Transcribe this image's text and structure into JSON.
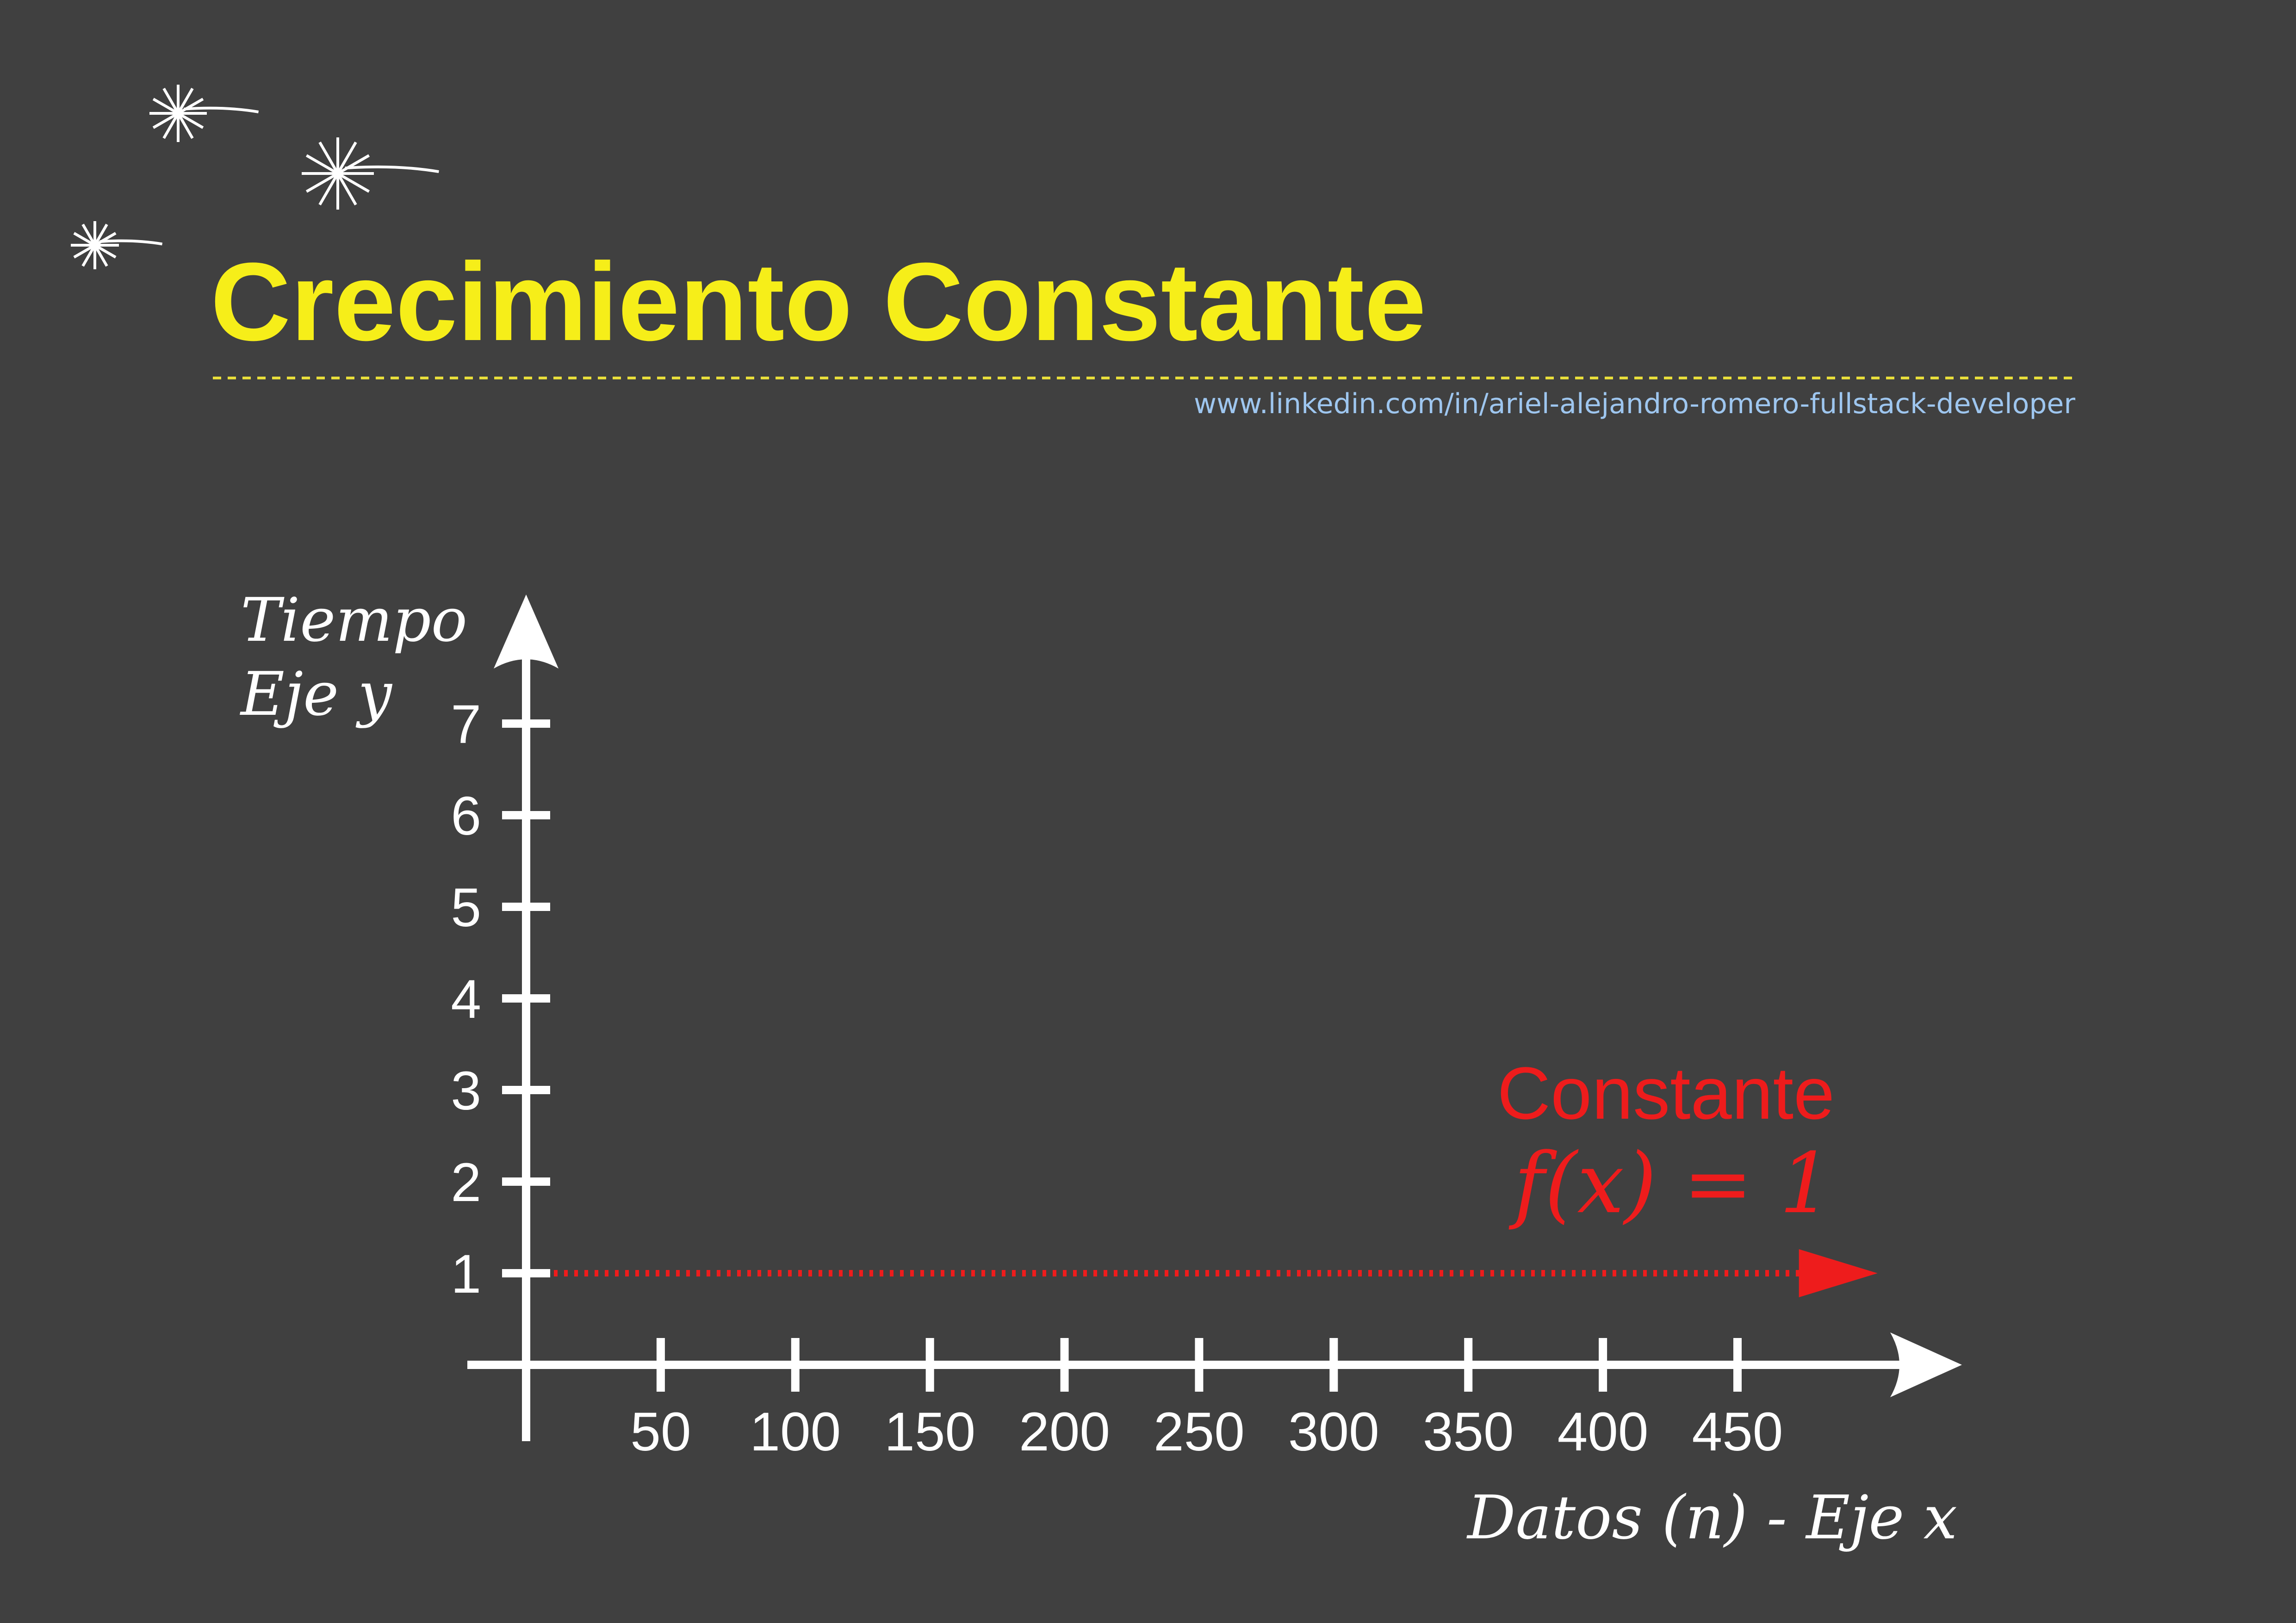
{
  "header": {
    "title": "Crecimiento Constante",
    "link": "www.linkedin.com/in/ariel-alejandro-romero-fullstack-developer"
  },
  "colors": {
    "background": "#404040",
    "title": "#f6ee19",
    "link": "#9ec6ef",
    "axis": "#ffffff",
    "series": "#ee1c1c"
  },
  "decorations": [
    "sparkle-icon",
    "sparkle-icon",
    "sparkle-icon"
  ],
  "chart_data": {
    "type": "line",
    "title": "Crecimiento Constante",
    "xlabel": "Datos (n) - Eje x",
    "ylabel_lines": [
      "Tiempo",
      "Eje y"
    ],
    "x_ticks": [
      50,
      100,
      150,
      200,
      250,
      300,
      350,
      400,
      450
    ],
    "y_ticks": [
      1,
      2,
      3,
      4,
      5,
      6,
      7
    ],
    "xlim": [
      0,
      490
    ],
    "ylim": [
      0,
      7
    ],
    "grid": false,
    "series": [
      {
        "name": "Constante",
        "formula": "f(x) = 1",
        "x": [
          0,
          490
        ],
        "values": [
          1,
          1
        ],
        "style": "dotted-arrow"
      }
    ]
  }
}
